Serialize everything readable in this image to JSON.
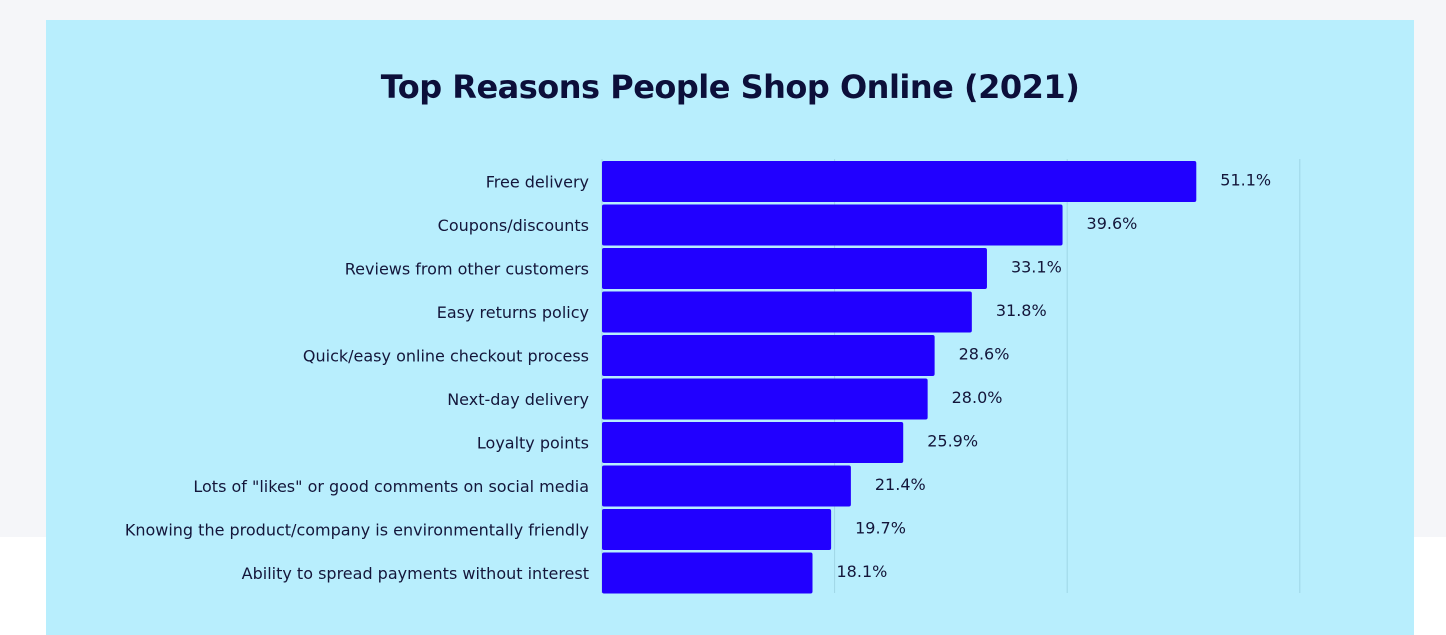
{
  "colors": {
    "card_background": "#b8eefd",
    "bar": "#2100ff",
    "title": "#0c0f3a",
    "text": "#14163a",
    "gridline": "#9fd6e6"
  },
  "chart_data": {
    "type": "bar",
    "orientation": "horizontal",
    "title": "Top Reasons People Shop Online (2021)",
    "xlabel": "",
    "ylabel": "",
    "unit": "%",
    "categories": [
      "Free delivery",
      "Coupons/discounts",
      "Reviews from other customers",
      "Easy returns policy",
      "Quick/easy online checkout process",
      "Next-day delivery",
      "Loyalty points",
      "Lots of \"likes\" or good comments on social media",
      "Knowing the product/company is environmentally friendly",
      "Ability to spread payments without interest"
    ],
    "values": [
      51.1,
      39.6,
      33.1,
      31.8,
      28.6,
      28.0,
      25.9,
      21.4,
      19.7,
      18.1
    ],
    "value_labels": [
      "51.1%",
      "39.6%",
      "33.1%",
      "31.8%",
      "28.6%",
      "28.0%",
      "25.9%",
      "21.4%",
      "19.7%",
      "18.1%"
    ],
    "xlim": [
      0,
      60
    ],
    "gridlines_at": [
      20,
      40,
      60
    ],
    "grid": true,
    "legend": "none"
  }
}
